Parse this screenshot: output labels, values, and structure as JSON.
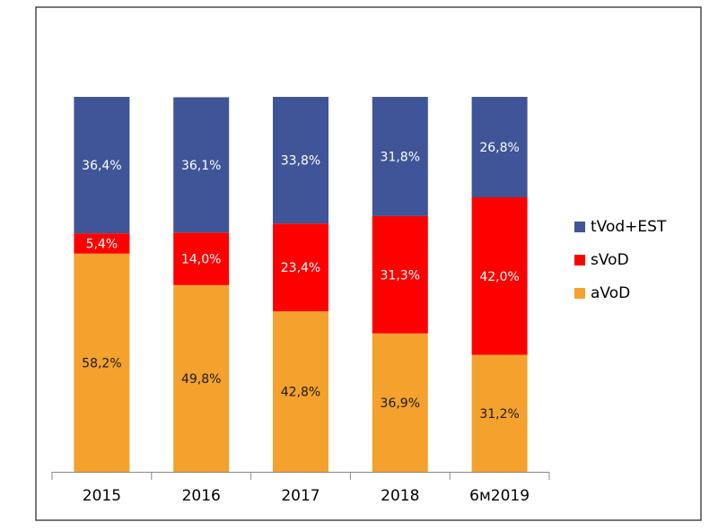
{
  "chart_data": {
    "type": "bar",
    "stacked": true,
    "percent_stacked": true,
    "categories": [
      "2015",
      "2016",
      "2017",
      "2018",
      "6м2019"
    ],
    "series": [
      {
        "name": "aVoD",
        "color": "#F4A22D",
        "values": [
          58.2,
          49.8,
          42.8,
          36.9,
          31.2
        ],
        "labels": [
          "58,2%",
          "49,8%",
          "42,8%",
          "36,9%",
          "31,2%"
        ]
      },
      {
        "name": "sVoD",
        "color": "#FF0000",
        "values": [
          5.4,
          14.0,
          23.4,
          31.3,
          42.0
        ],
        "labels": [
          "5,4%",
          "14,0%",
          "23,4%",
          "31,3%",
          "42,0%"
        ]
      },
      {
        "name": "tVod+EST",
        "color": "#3F5597",
        "values": [
          36.4,
          36.1,
          33.8,
          31.8,
          26.8
        ],
        "labels": [
          "36,4%",
          "36,1%",
          "33,8%",
          "31,8%",
          "26,8%"
        ]
      }
    ],
    "legend_order": [
      "tVod+EST",
      "sVoD",
      "aVoD"
    ],
    "legend_position": "right",
    "ylim": [
      0,
      100
    ],
    "grid": false
  }
}
